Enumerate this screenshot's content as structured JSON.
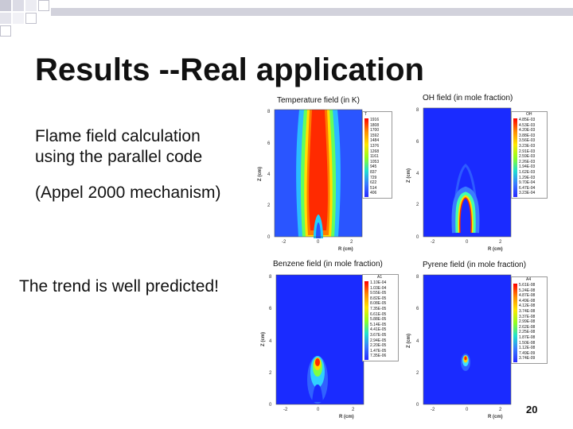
{
  "slide": {
    "title": "Results --Real application",
    "text_line1": "Flame field calculation",
    "text_line2": "using the parallel code",
    "text_mechanism": "(Appel 2000 mechanism)",
    "text_trend": "The trend is well predicted!",
    "page_number": "20"
  },
  "panels": [
    {
      "id": "temperature",
      "title": "Temperature field (in K)",
      "legend_header": "T",
      "legend_values": [
        "1916",
        "1808",
        "1700",
        "1592",
        "1484",
        "1376",
        "1268",
        "1161",
        "1053",
        "945",
        "837",
        "729",
        "622",
        "514",
        "406"
      ],
      "xlabel": "R (cm)",
      "ylabel": "Z (cm)",
      "x_ticks": [
        "-2",
        "0",
        "2"
      ],
      "y_ticks": [
        "0",
        "2",
        "4",
        "6",
        "8"
      ],
      "color": "#2a55ff"
    },
    {
      "id": "oh",
      "title": "OH field (in mole fraction)",
      "legend_header": "OH",
      "legend_values": [
        "4.85E-03",
        "4.53E-03",
        "4.20E-03",
        "3.88E-03",
        "3.56E-03",
        "3.23E-03",
        "2.91E-03",
        "2.59E-03",
        "2.26E-03",
        "1.94E-03",
        "1.62E-03",
        "1.29E-03",
        "9.70E-04",
        "6.47E-04",
        "3.23E-04"
      ],
      "xlabel": "R (cm)",
      "ylabel": "Z (cm)",
      "x_ticks": [
        "-2",
        "0",
        "2"
      ],
      "y_ticks": [
        "0",
        "2",
        "4",
        "6",
        "8"
      ],
      "color": "#1a2bff"
    },
    {
      "id": "benzene",
      "title": "Benzene field (in mole fraction)",
      "legend_header": "A1",
      "legend_values": [
        "1.10E-04",
        "1.03E-04",
        "9.55E-05",
        "8.82E-05",
        "8.08E-05",
        "7.35E-05",
        "6.61E-05",
        "5.88E-05",
        "5.14E-05",
        "4.41E-05",
        "3.67E-05",
        "2.94E-05",
        "2.20E-05",
        "1.47E-05",
        "7.35E-06"
      ],
      "xlabel": "R (cm)",
      "ylabel": "Z (cm)",
      "x_ticks": [
        "-2",
        "0",
        "2"
      ],
      "y_ticks": [
        "0",
        "2",
        "4",
        "6",
        "8"
      ],
      "color": "#1a2bff"
    },
    {
      "id": "pyrene",
      "title": "Pyrene field (in mole fraction)",
      "legend_header": "A4",
      "legend_values": [
        "5.61E-08",
        "5.24E-08",
        "4.87E-08",
        "4.49E-08",
        "4.12E-08",
        "3.74E-08",
        "3.37E-08",
        "2.99E-08",
        "2.62E-08",
        "2.25E-08",
        "1.87E-08",
        "1.50E-08",
        "1.12E-08",
        "7.49E-09",
        "3.74E-09"
      ],
      "xlabel": "R (cm)",
      "ylabel": "Z (cm)",
      "x_ticks": [
        "-2",
        "0",
        "2"
      ],
      "y_ticks": [
        "0",
        "2",
        "4",
        "6",
        "8"
      ],
      "color": "#1a2bff"
    }
  ]
}
